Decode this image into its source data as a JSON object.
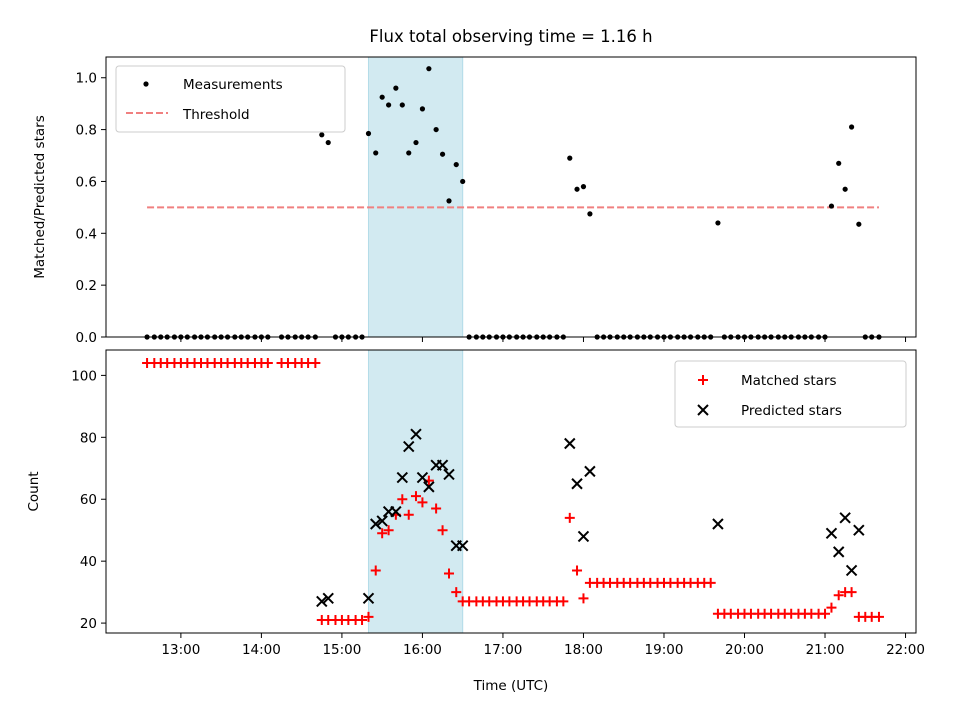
{
  "title": "Flux total observing time = 1.16 h",
  "colors": {
    "measurement": "#000000",
    "threshold": "#f08080",
    "matched": "#ff0000",
    "predicted": "#000000",
    "span": "#add8e6"
  },
  "chart_data": [
    {
      "type": "scatter",
      "ylabel": "Matched/Predicted stars",
      "xlim": [
        12.07,
        22.13
      ],
      "ylim": [
        0,
        1.08
      ],
      "yticks": [
        0.0,
        0.2,
        0.4,
        0.6,
        0.8,
        1.0
      ],
      "ytick_labels": [
        "0.0",
        "0.2",
        "0.4",
        "0.6",
        "0.8",
        "1.0"
      ],
      "legend": {
        "location": "upper-left",
        "entries": [
          "Measurements",
          "Threshold"
        ]
      },
      "threshold": {
        "name": "Threshold",
        "y": 0.5,
        "x": [
          12.58,
          21.67
        ]
      },
      "shaded_span": [
        15.33,
        16.5
      ],
      "series": [
        {
          "name": "Measurements",
          "x": [
            12.58,
            12.67,
            12.75,
            12.83,
            12.92,
            13.0,
            13.08,
            13.17,
            13.25,
            13.33,
            13.42,
            13.5,
            13.58,
            13.67,
            13.75,
            13.83,
            13.92,
            14.0,
            14.08,
            14.25,
            14.33,
            14.42,
            14.5,
            14.58,
            14.67,
            14.75,
            14.83,
            14.92,
            15.0,
            15.08,
            15.17,
            15.25,
            15.33,
            15.42,
            15.5,
            15.58,
            15.67,
            15.75,
            15.83,
            15.92,
            16.0,
            16.08,
            16.17,
            16.25,
            16.33,
            16.42,
            16.5,
            16.58,
            16.67,
            16.75,
            16.83,
            16.92,
            17.0,
            17.08,
            17.17,
            17.25,
            17.33,
            17.42,
            17.5,
            17.58,
            17.67,
            17.75,
            17.83,
            17.92,
            18.0,
            18.08,
            18.17,
            18.25,
            18.33,
            18.42,
            18.5,
            18.58,
            18.67,
            18.75,
            18.83,
            18.92,
            19.0,
            19.08,
            19.17,
            19.25,
            19.33,
            19.42,
            19.5,
            19.58,
            19.67,
            19.75,
            19.83,
            19.92,
            20.0,
            20.08,
            20.17,
            20.25,
            20.33,
            20.42,
            20.5,
            20.58,
            20.67,
            20.75,
            20.83,
            20.92,
            21.0,
            21.08,
            21.17,
            21.25,
            21.33,
            21.42,
            21.5,
            21.58,
            21.67
          ],
          "y": [
            0,
            0,
            0,
            0,
            0,
            0,
            0,
            0,
            0,
            0,
            0,
            0,
            0,
            0,
            0,
            0,
            0,
            0,
            0,
            0,
            0,
            0,
            0,
            0,
            0,
            0.78,
            0.75,
            0,
            0,
            0,
            0,
            0,
            0.785,
            0.71,
            0.925,
            0.895,
            0.96,
            0.895,
            0.71,
            0.75,
            0.88,
            1.035,
            0.8,
            0.705,
            0.525,
            0.665,
            0.6,
            0,
            0,
            0,
            0,
            0,
            0,
            0,
            0,
            0,
            0,
            0,
            0,
            0,
            0,
            0,
            0.69,
            0.57,
            0.58,
            0.475,
            0,
            0,
            0,
            0,
            0,
            0,
            0,
            0,
            0,
            0,
            0,
            0,
            0,
            0,
            0,
            0,
            0,
            0,
            0.44,
            0,
            0,
            0,
            0,
            0,
            0,
            0,
            0,
            0,
            0,
            0,
            0,
            0,
            0,
            0,
            0,
            0.505,
            0.67,
            0.57,
            0.81,
            0.435,
            0,
            0,
            0
          ]
        }
      ]
    },
    {
      "type": "scatter",
      "ylabel": "Count",
      "xlabel": "Time (UTC)",
      "xlim": [
        12.07,
        22.13
      ],
      "ylim": [
        16.8,
        108.2
      ],
      "yticks": [
        20,
        40,
        60,
        80,
        100
      ],
      "ytick_labels": [
        "20",
        "40",
        "60",
        "80",
        "100"
      ],
      "xticks": [
        13,
        14,
        15,
        16,
        17,
        18,
        19,
        20,
        21,
        22
      ],
      "xtick_labels": [
        "13:00",
        "14:00",
        "15:00",
        "16:00",
        "17:00",
        "18:00",
        "19:00",
        "20:00",
        "21:00",
        "22:00"
      ],
      "legend": {
        "location": "upper-right",
        "entries": [
          "Matched stars",
          "Predicted stars"
        ]
      },
      "shaded_span": [
        15.33,
        16.5
      ],
      "series": [
        {
          "name": "Matched stars",
          "marker": "plus",
          "x": [
            12.58,
            12.67,
            12.75,
            12.83,
            12.92,
            13.0,
            13.08,
            13.17,
            13.25,
            13.33,
            13.42,
            13.5,
            13.58,
            13.67,
            13.75,
            13.83,
            13.92,
            14.0,
            14.08,
            14.25,
            14.33,
            14.42,
            14.5,
            14.58,
            14.67,
            14.75,
            14.83,
            14.92,
            15.0,
            15.08,
            15.17,
            15.25,
            15.33,
            15.42,
            15.5,
            15.58,
            15.67,
            15.75,
            15.83,
            15.92,
            16.0,
            16.08,
            16.17,
            16.25,
            16.33,
            16.42,
            16.5,
            16.58,
            16.67,
            16.75,
            16.83,
            16.92,
            17.0,
            17.08,
            17.17,
            17.25,
            17.33,
            17.42,
            17.5,
            17.58,
            17.67,
            17.75,
            17.83,
            17.92,
            18.0,
            18.08,
            18.17,
            18.25,
            18.33,
            18.42,
            18.5,
            18.58,
            18.67,
            18.75,
            18.83,
            18.92,
            19.0,
            19.08,
            19.17,
            19.25,
            19.33,
            19.42,
            19.5,
            19.58,
            19.67,
            19.75,
            19.83,
            19.92,
            20.0,
            20.08,
            20.17,
            20.25,
            20.33,
            20.42,
            20.5,
            20.58,
            20.67,
            20.75,
            20.83,
            20.92,
            21.0,
            21.08,
            21.17,
            21.25,
            21.33,
            21.42,
            21.5,
            21.58,
            21.67
          ],
          "y": [
            104,
            104,
            104,
            104,
            104,
            104,
            104,
            104,
            104,
            104,
            104,
            104,
            104,
            104,
            104,
            104,
            104,
            104,
            104,
            104,
            104,
            104,
            104,
            104,
            104,
            21,
            21,
            21,
            21,
            21,
            21,
            21,
            22,
            37,
            49,
            50,
            55,
            60,
            55,
            61,
            59,
            66,
            57,
            50,
            36,
            30,
            27,
            27,
            27,
            27,
            27,
            27,
            27,
            27,
            27,
            27,
            27,
            27,
            27,
            27,
            27,
            27,
            54,
            37,
            28,
            33,
            33,
            33,
            33,
            33,
            33,
            33,
            33,
            33,
            33,
            33,
            33,
            33,
            33,
            33,
            33,
            33,
            33,
            33,
            23,
            23,
            23,
            23,
            23,
            23,
            23,
            23,
            23,
            23,
            23,
            23,
            23,
            23,
            23,
            23,
            23,
            25,
            29,
            30,
            30,
            22,
            22,
            22,
            22
          ]
        },
        {
          "name": "Predicted stars",
          "marker": "x",
          "x": [
            14.75,
            14.83,
            15.33,
            15.42,
            15.5,
            15.58,
            15.67,
            15.75,
            15.83,
            15.92,
            16.0,
            16.08,
            16.17,
            16.25,
            16.33,
            16.42,
            16.5,
            17.83,
            17.92,
            18.0,
            18.08,
            19.67,
            21.08,
            21.17,
            21.25,
            21.33,
            21.42
          ],
          "y": [
            27,
            28,
            28,
            52,
            53,
            56,
            56,
            67,
            77,
            81,
            67,
            64,
            71,
            71,
            68,
            45,
            45,
            78,
            65,
            48,
            69,
            52,
            49,
            43,
            54,
            37,
            50
          ]
        }
      ]
    }
  ]
}
